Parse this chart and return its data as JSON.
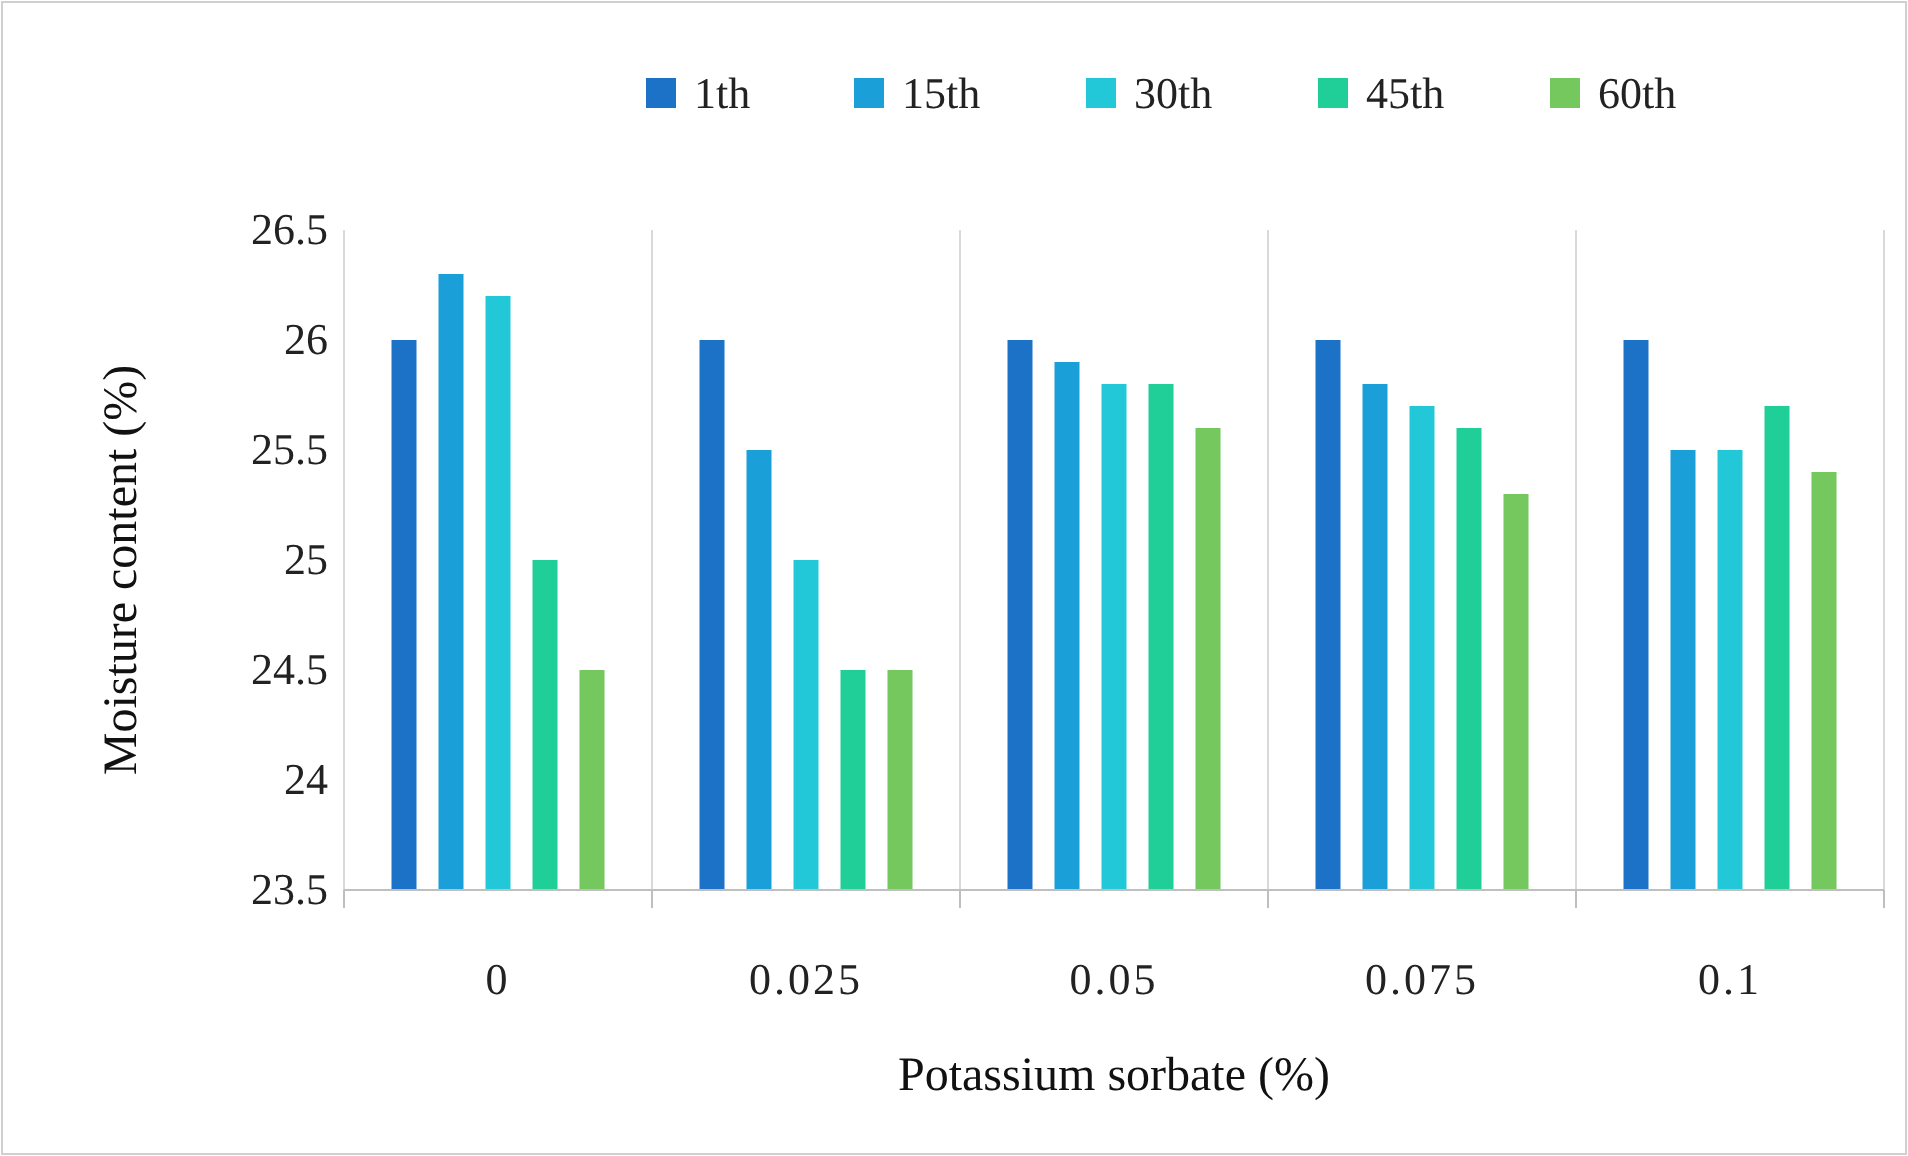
{
  "chart_data": {
    "type": "bar",
    "xlabel": "Potassium sorbate (%)",
    "ylabel": "Moisture content (%)",
    "categories": [
      "0",
      "0.025",
      "0.05",
      "0.075",
      "0.1"
    ],
    "series": [
      {
        "name": "1th",
        "color": "#1b72c6",
        "values": [
          26,
          26,
          26,
          26,
          26
        ]
      },
      {
        "name": "15th",
        "color": "#1b9fd9",
        "values": [
          26.3,
          25.5,
          25.9,
          25.8,
          25.5
        ]
      },
      {
        "name": "30th",
        "color": "#22c8d8",
        "values": [
          26.2,
          25,
          25.8,
          25.7,
          25.5
        ]
      },
      {
        "name": "45th",
        "color": "#20cf98",
        "values": [
          25,
          24.5,
          25.8,
          25.6,
          25.7
        ]
      },
      {
        "name": "60th",
        "color": "#74c85e",
        "values": [
          24.5,
          24.5,
          25.6,
          25.3,
          25.4
        ]
      }
    ],
    "ylim": [
      23.5,
      26.5
    ],
    "yticks": [
      23.5,
      24,
      24.5,
      25,
      25.5,
      26,
      26.5
    ],
    "grid": "x",
    "legend": "top"
  }
}
